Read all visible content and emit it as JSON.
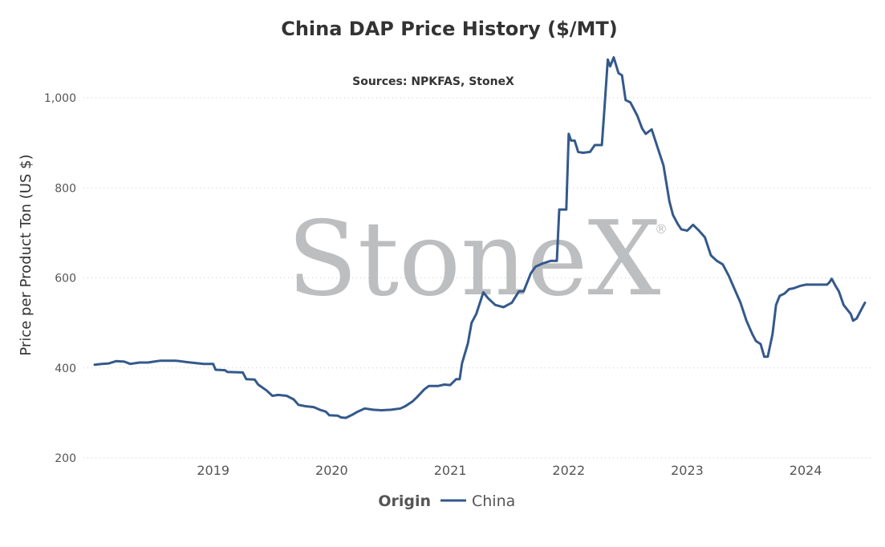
{
  "chart_data": {
    "type": "line",
    "title": "China DAP Price History ($/MT)",
    "subtitle": "Sources: NPKFAS, StoneX",
    "xlabel": "",
    "ylabel": "Price per Product Ton (US $)",
    "ylim": [
      200,
      1000
    ],
    "y_ticks": [
      200,
      400,
      600,
      800,
      1000
    ],
    "y_tick_labels": [
      "200",
      "400",
      "600",
      "800",
      "1,000"
    ],
    "xlim": [
      2018.0,
      2024.5
    ],
    "x_ticks": [
      2019,
      2020,
      2021,
      2022,
      2023,
      2024
    ],
    "x_tick_labels": [
      "2019",
      "2020",
      "2021",
      "2022",
      "2023",
      "2024"
    ],
    "grid": "horizontal dotted",
    "legend": {
      "title": "Origin",
      "position": "bottom-center",
      "items": [
        "China"
      ]
    },
    "watermark": "StoneX",
    "series": [
      {
        "name": "China",
        "color": "#34598a",
        "points": [
          [
            2018.0,
            407
          ],
          [
            2018.06,
            409
          ],
          [
            2018.12,
            410
          ],
          [
            2018.18,
            415
          ],
          [
            2018.25,
            414
          ],
          [
            2018.3,
            409
          ],
          [
            2018.38,
            412
          ],
          [
            2018.45,
            412
          ],
          [
            2018.5,
            414
          ],
          [
            2018.55,
            416
          ],
          [
            2018.62,
            416
          ],
          [
            2018.68,
            416
          ],
          [
            2018.72,
            415
          ],
          [
            2018.78,
            413
          ],
          [
            2018.85,
            411
          ],
          [
            2018.92,
            409
          ],
          [
            2019.0,
            409
          ],
          [
            2019.02,
            396
          ],
          [
            2019.1,
            395
          ],
          [
            2019.12,
            391
          ],
          [
            2019.25,
            390
          ],
          [
            2019.28,
            375
          ],
          [
            2019.35,
            374
          ],
          [
            2019.38,
            363
          ],
          [
            2019.45,
            350
          ],
          [
            2019.5,
            338
          ],
          [
            2019.55,
            340
          ],
          [
            2019.62,
            338
          ],
          [
            2019.68,
            330
          ],
          [
            2019.72,
            318
          ],
          [
            2019.78,
            315
          ],
          [
            2019.85,
            313
          ],
          [
            2019.9,
            307
          ],
          [
            2019.95,
            303
          ],
          [
            2019.98,
            295
          ],
          [
            2020.05,
            294
          ],
          [
            2020.08,
            290
          ],
          [
            2020.12,
            289
          ],
          [
            2020.18,
            297
          ],
          [
            2020.22,
            303
          ],
          [
            2020.28,
            310
          ],
          [
            2020.35,
            307
          ],
          [
            2020.42,
            306
          ],
          [
            2020.5,
            307
          ],
          [
            2020.58,
            310
          ],
          [
            2020.62,
            315
          ],
          [
            2020.68,
            325
          ],
          [
            2020.72,
            335
          ],
          [
            2020.78,
            352
          ],
          [
            2020.82,
            360
          ],
          [
            2020.9,
            360
          ],
          [
            2020.95,
            363
          ],
          [
            2021.0,
            362
          ],
          [
            2021.05,
            375
          ],
          [
            2021.08,
            375
          ],
          [
            2021.1,
            410
          ],
          [
            2021.15,
            455
          ],
          [
            2021.18,
            500
          ],
          [
            2021.22,
            520
          ],
          [
            2021.28,
            568
          ],
          [
            2021.32,
            555
          ],
          [
            2021.38,
            540
          ],
          [
            2021.45,
            535
          ],
          [
            2021.52,
            545
          ],
          [
            2021.58,
            570
          ],
          [
            2021.62,
            570
          ],
          [
            2021.68,
            610
          ],
          [
            2021.72,
            625
          ],
          [
            2021.78,
            632
          ],
          [
            2021.85,
            638
          ],
          [
            2021.9,
            638
          ],
          [
            2021.92,
            752
          ],
          [
            2021.98,
            752
          ],
          [
            2022.0,
            920
          ],
          [
            2022.02,
            905
          ],
          [
            2022.05,
            905
          ],
          [
            2022.08,
            880
          ],
          [
            2022.12,
            878
          ],
          [
            2022.18,
            880
          ],
          [
            2022.22,
            895
          ],
          [
            2022.28,
            895
          ],
          [
            2022.3,
            970
          ],
          [
            2022.33,
            1085
          ],
          [
            2022.35,
            1070
          ],
          [
            2022.38,
            1090
          ],
          [
            2022.42,
            1055
          ],
          [
            2022.45,
            1050
          ],
          [
            2022.48,
            995
          ],
          [
            2022.52,
            990
          ],
          [
            2022.55,
            975
          ],
          [
            2022.58,
            960
          ],
          [
            2022.62,
            932
          ],
          [
            2022.65,
            920
          ],
          [
            2022.7,
            930
          ],
          [
            2022.75,
            890
          ],
          [
            2022.8,
            850
          ],
          [
            2022.85,
            770
          ],
          [
            2022.88,
            740
          ],
          [
            2022.92,
            720
          ],
          [
            2022.95,
            708
          ],
          [
            2023.0,
            705
          ],
          [
            2023.05,
            718
          ],
          [
            2023.1,
            705
          ],
          [
            2023.15,
            690
          ],
          [
            2023.2,
            650
          ],
          [
            2023.25,
            638
          ],
          [
            2023.3,
            630
          ],
          [
            2023.35,
            605
          ],
          [
            2023.4,
            575
          ],
          [
            2023.45,
            545
          ],
          [
            2023.5,
            505
          ],
          [
            2023.55,
            475
          ],
          [
            2023.58,
            460
          ],
          [
            2023.62,
            453
          ],
          [
            2023.65,
            425
          ],
          [
            2023.68,
            425
          ],
          [
            2023.72,
            475
          ],
          [
            2023.75,
            540
          ],
          [
            2023.78,
            560
          ],
          [
            2023.82,
            565
          ],
          [
            2023.86,
            575
          ],
          [
            2023.9,
            577
          ],
          [
            2023.95,
            582
          ],
          [
            2024.0,
            585
          ],
          [
            2024.05,
            585
          ],
          [
            2024.1,
            585
          ],
          [
            2024.15,
            585
          ],
          [
            2024.18,
            585
          ],
          [
            2024.2,
            590
          ],
          [
            2024.22,
            598
          ],
          [
            2024.25,
            583
          ],
          [
            2024.28,
            570
          ],
          [
            2024.32,
            540
          ],
          [
            2024.35,
            530
          ],
          [
            2024.38,
            520
          ],
          [
            2024.4,
            505
          ],
          [
            2024.43,
            510
          ],
          [
            2024.46,
            525
          ],
          [
            2024.5,
            545
          ]
        ]
      }
    ]
  }
}
